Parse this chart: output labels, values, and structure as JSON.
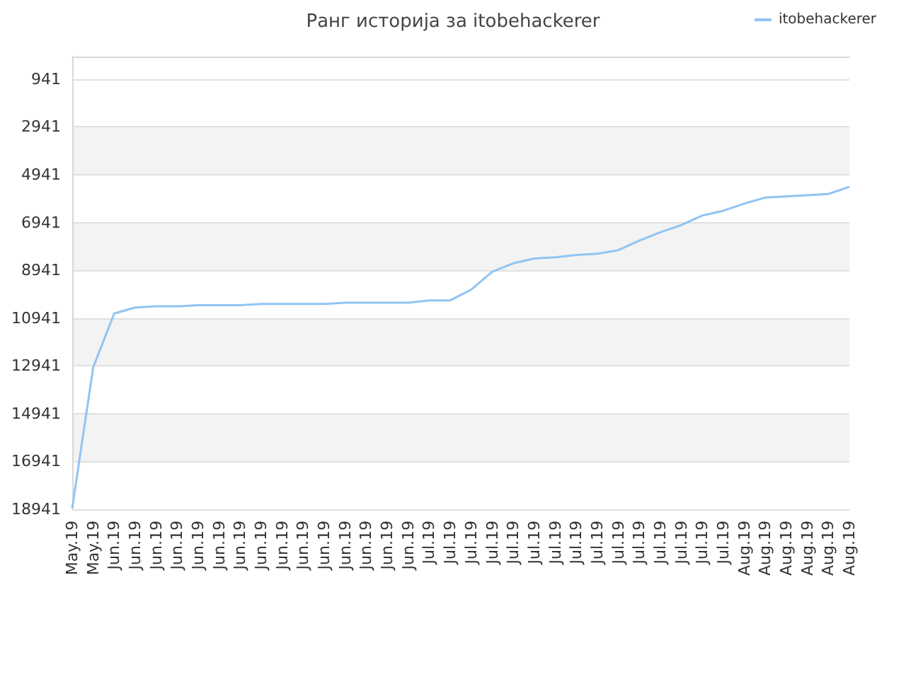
{
  "chart_data": {
    "type": "line",
    "title": "Ранг историја за itobehackerer",
    "categories": [
      "May.19",
      "May.19",
      "Jun.19",
      "Jun.19",
      "Jun.19",
      "Jun.19",
      "Jun.19",
      "Jun.19",
      "Jun.19",
      "Jun.19",
      "Jun.19",
      "Jun.19",
      "Jun.19",
      "Jun.19",
      "Jun.19",
      "Jun.19",
      "Jun.19",
      "Jul.19",
      "Jul.19",
      "Jul.19",
      "Jul.19",
      "Jul.19",
      "Jul.19",
      "Jul.19",
      "Jul.19",
      "Jul.19",
      "Jul.19",
      "Jul.19",
      "Jul.19",
      "Jul.19",
      "Jul.19",
      "Jul.19",
      "Aug.19",
      "Aug.19",
      "Aug.19",
      "Aug.19",
      "Aug.19",
      "Aug.19"
    ],
    "series": [
      {
        "name": "itobehackerer",
        "color": "#90c4f3",
        "values": [
          18900,
          13000,
          10750,
          10500,
          10450,
          10450,
          10400,
          10400,
          10400,
          10350,
          10350,
          10350,
          10350,
          10300,
          10300,
          10300,
          10300,
          10200,
          10200,
          9750,
          9000,
          8650,
          8450,
          8400,
          8300,
          8250,
          8100,
          7700,
          7350,
          7050,
          6650,
          6450,
          6150,
          5900,
          5850,
          5800,
          5750,
          5450
        ]
      }
    ],
    "ylim": [
      18941,
      0
    ],
    "yticks": [
      941,
      2941,
      4941,
      6941,
      8941,
      10941,
      12941,
      14941,
      16941,
      18941
    ],
    "grid": "y",
    "legend": "top right",
    "marker": "none",
    "line_style": "solid"
  }
}
